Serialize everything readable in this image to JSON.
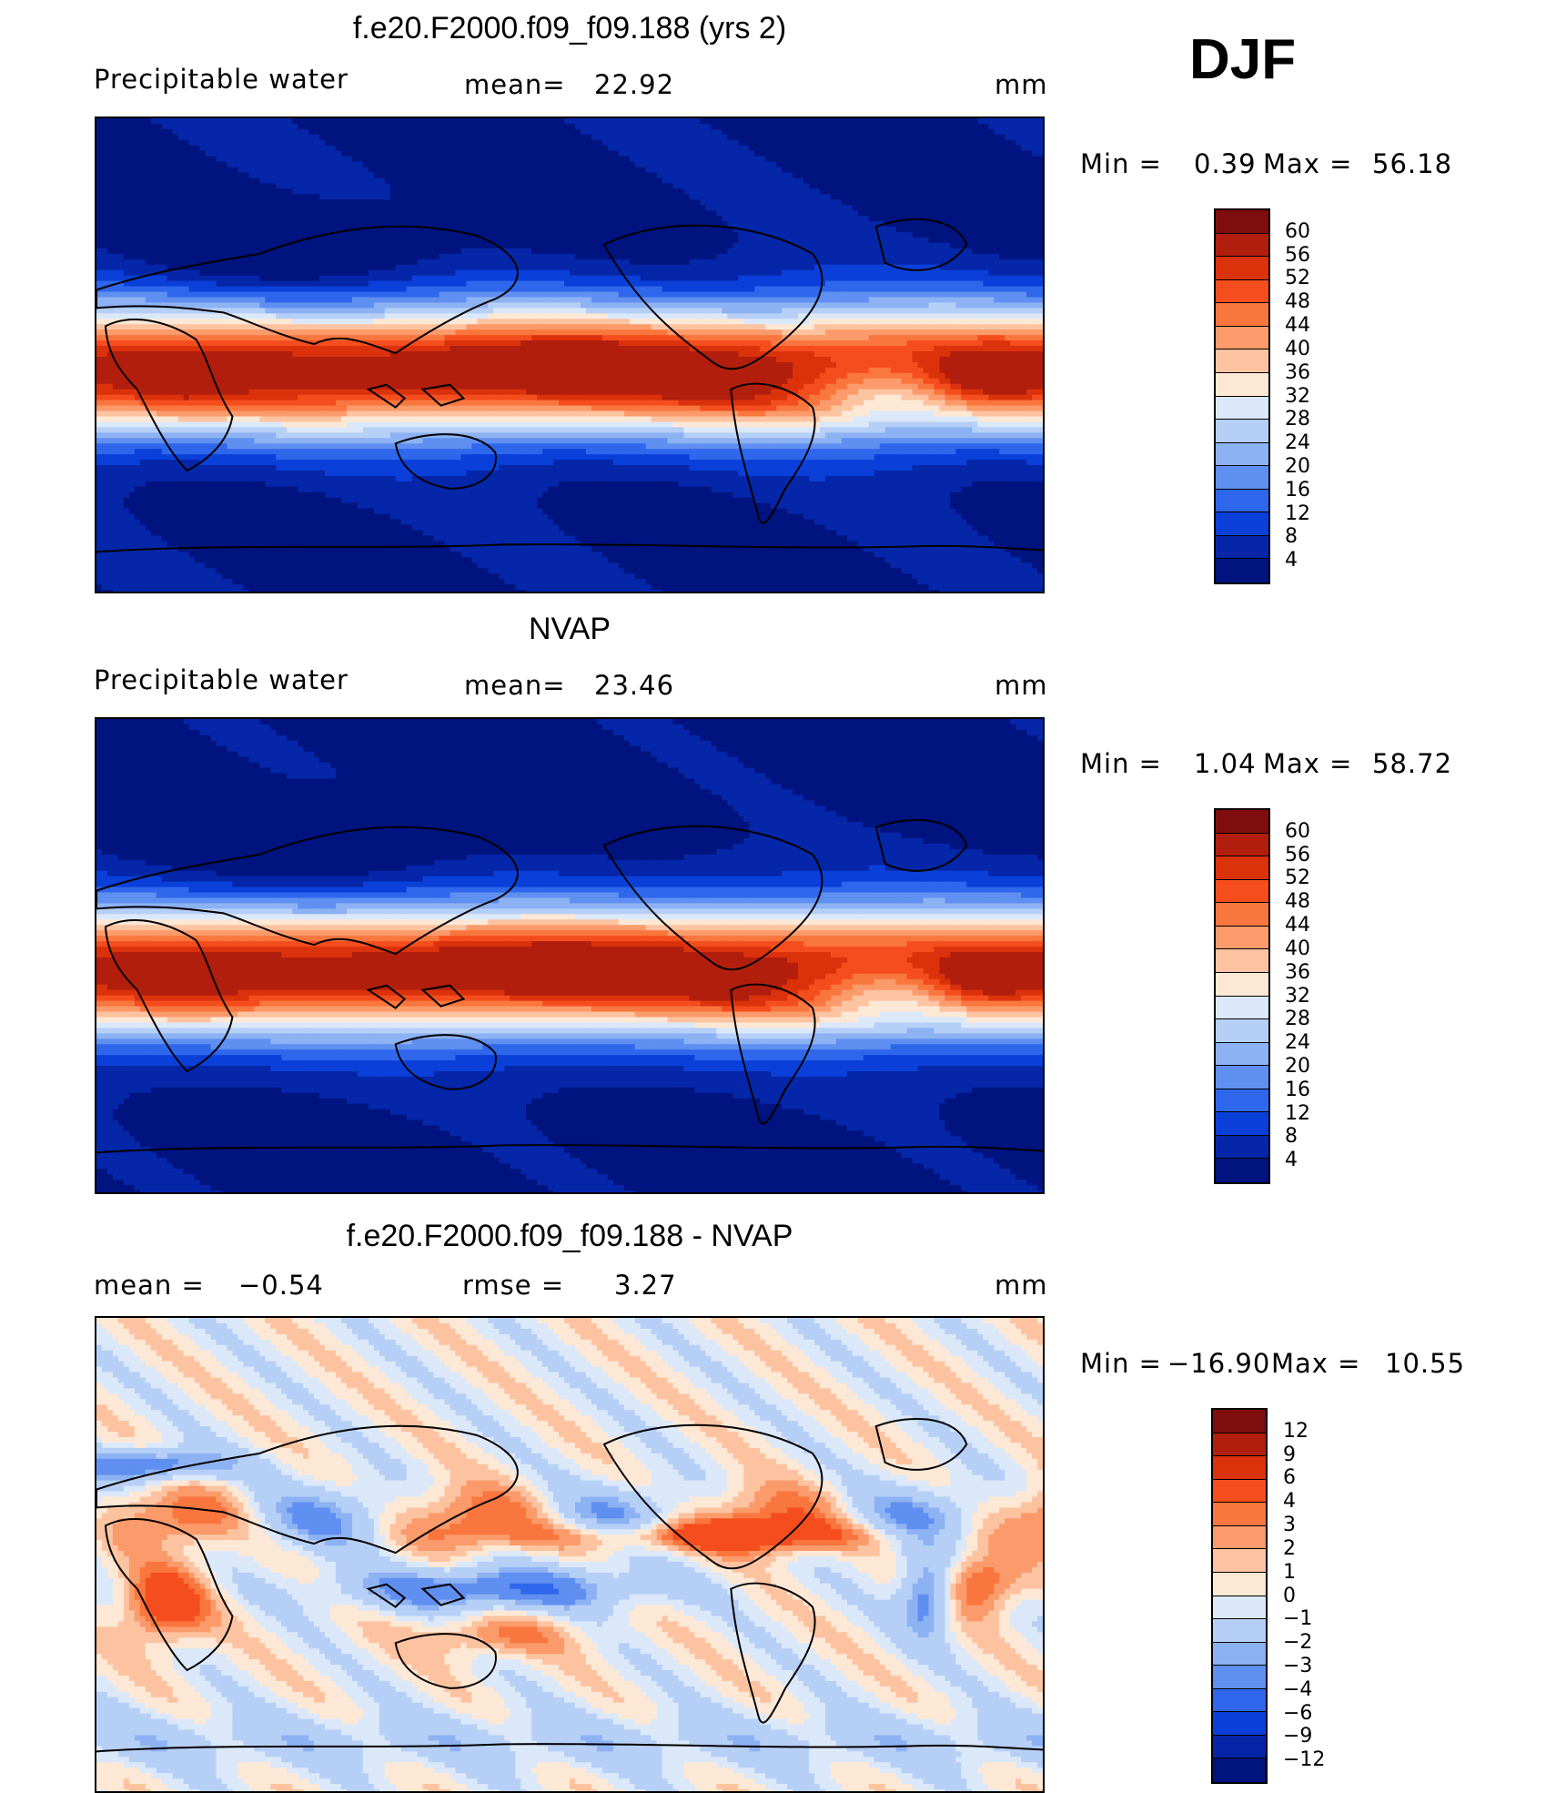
{
  "season": "DJF",
  "panels": [
    {
      "title": "f.e20.F2000.f09_f09.188 (yrs 2)",
      "left_label": "Precipitable water",
      "mid_label": "mean=",
      "mid_value": "22.92",
      "units": "mm",
      "minmax": {
        "min_label": "Min =",
        "min_value": "0.39",
        "max_label": "Max =",
        "max_value": "56.18"
      },
      "colorbar": {
        "labels": [
          "60",
          "56",
          "52",
          "48",
          "44",
          "40",
          "36",
          "32",
          "28",
          "24",
          "20",
          "16",
          "12",
          "8",
          "4"
        ],
        "colors": [
          "#7f0d0d",
          "#b21e0d",
          "#db320c",
          "#f54d1e",
          "#f9763e",
          "#fb9a6a",
          "#fdc3a0",
          "#fde8d6",
          "#dbe8f9",
          "#b6cff6",
          "#8db2f3",
          "#5f8ff0",
          "#2f67ec",
          "#0a40d9",
          "#0526a8",
          "#00137f"
        ]
      },
      "map_colors": [
        "#00137f",
        "#0526a8",
        "#0a40d9",
        "#2f67ec",
        "#5f8ff0",
        "#8db2f3",
        "#b6cff6",
        "#dbe8f9",
        "#fde8d6",
        "#fdc3a0",
        "#fb9a6a",
        "#f9763e",
        "#f54d1e",
        "#db320c",
        "#b21e0d"
      ]
    },
    {
      "title": "NVAP",
      "left_label": "Precipitable water",
      "mid_label": "mean=",
      "mid_value": "23.46",
      "units": "mm",
      "minmax": {
        "min_label": "Min =",
        "min_value": "1.04",
        "max_label": "Max =",
        "max_value": "58.72"
      },
      "colorbar": {
        "labels": [
          "60",
          "56",
          "52",
          "48",
          "44",
          "40",
          "36",
          "32",
          "28",
          "24",
          "20",
          "16",
          "12",
          "8",
          "4"
        ],
        "colors": [
          "#7f0d0d",
          "#b21e0d",
          "#db320c",
          "#f54d1e",
          "#f9763e",
          "#fb9a6a",
          "#fdc3a0",
          "#fde8d6",
          "#dbe8f9",
          "#b6cff6",
          "#8db2f3",
          "#5f8ff0",
          "#2f67ec",
          "#0a40d9",
          "#0526a8",
          "#00137f"
        ]
      },
      "map_colors": [
        "#00137f",
        "#0526a8",
        "#0a40d9",
        "#2f67ec",
        "#5f8ff0",
        "#8db2f3",
        "#b6cff6",
        "#dbe8f9",
        "#fde8d6",
        "#fdc3a0",
        "#fb9a6a",
        "#f9763e",
        "#f54d1e",
        "#db320c",
        "#b21e0d"
      ]
    },
    {
      "title": "f.e20.F2000.f09_f09.188 - NVAP",
      "left_label": "mean =",
      "left_value": "−0.54",
      "mid_label": "rmse =",
      "mid_value": "3.27",
      "units": "mm",
      "minmax": {
        "min_label": "Min =",
        "min_value": "−16.90",
        "max_label": "Max =",
        "max_value": "10.55"
      },
      "colorbar": {
        "labels": [
          "12",
          "9",
          "6",
          "4",
          "3",
          "2",
          "1",
          "0",
          "−1",
          "−2",
          "−3",
          "−4",
          "−6",
          "−9",
          "−12"
        ],
        "colors": [
          "#7f0d0d",
          "#b21e0d",
          "#db320c",
          "#f54d1e",
          "#f9763e",
          "#fb9a6a",
          "#fdc3a0",
          "#fde8d6",
          "#dbe8f9",
          "#b6cff6",
          "#8db2f3",
          "#5f8ff0",
          "#2f67ec",
          "#0a40d9",
          "#0526a8",
          "#00137f"
        ]
      },
      "map_colors": [
        "#dbe8f9",
        "#b6cff6",
        "#8db2f3",
        "#5f8ff0",
        "#2f67ec",
        "#fde8d6",
        "#fdc3a0",
        "#fb9a6a",
        "#f9763e",
        "#f54d1e",
        "#db320c"
      ]
    }
  ]
}
